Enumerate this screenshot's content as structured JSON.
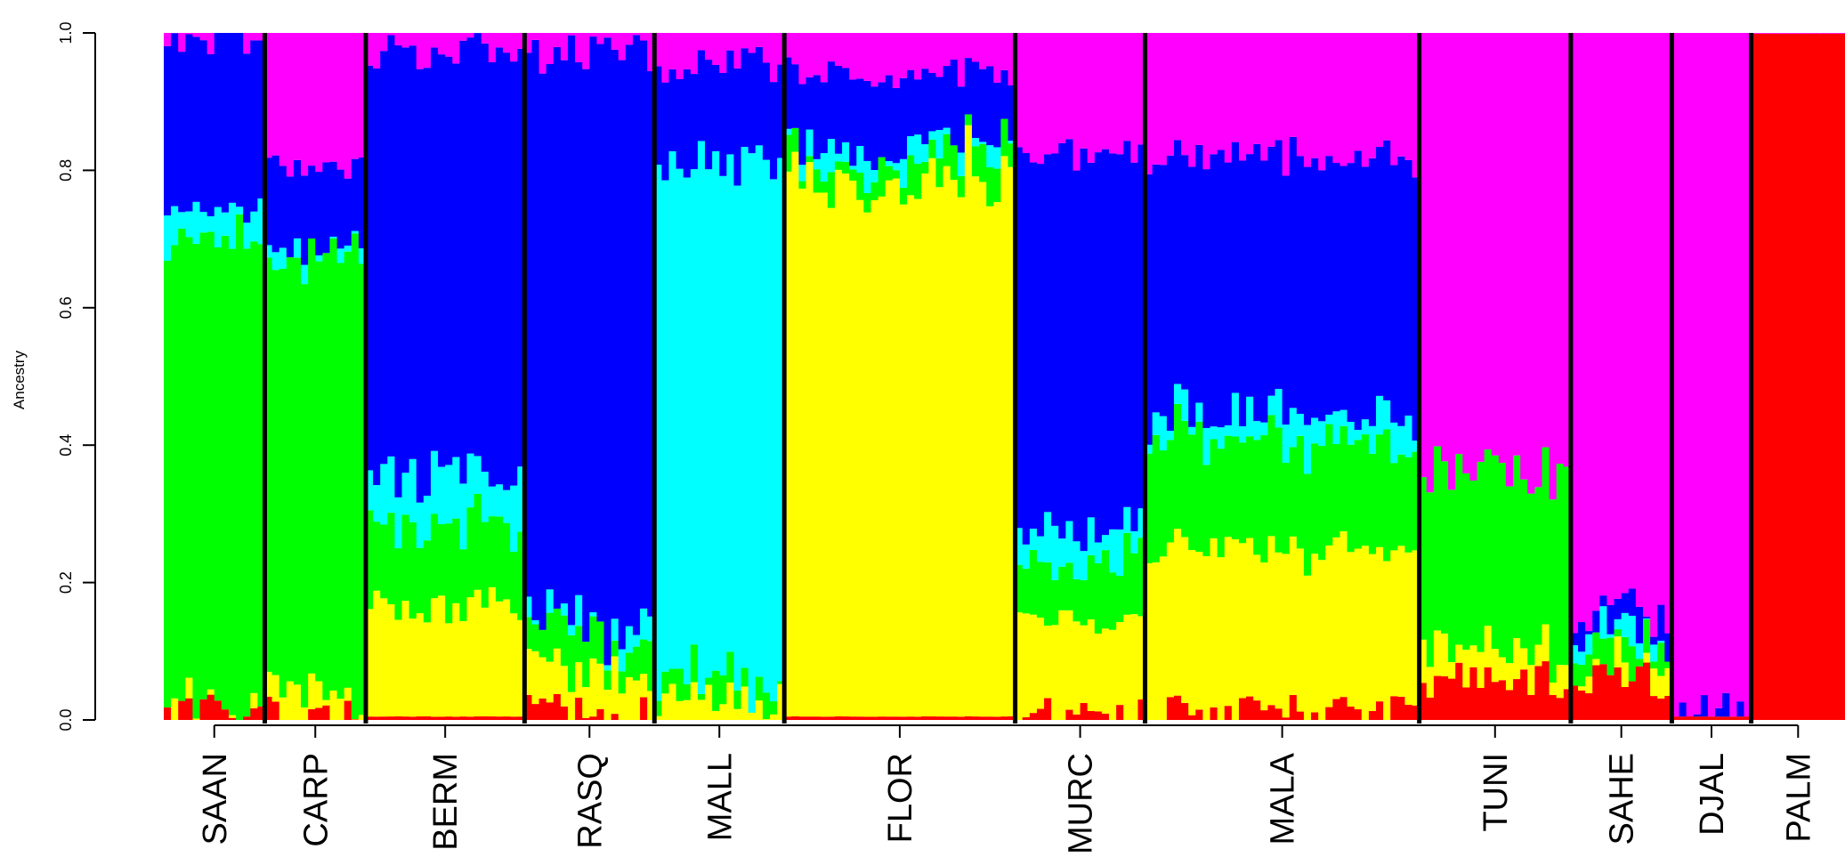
{
  "chart_data": {
    "type": "stacked-bar",
    "ylabel": "Ancestry",
    "ylim": [
      0,
      1
    ],
    "yticks": [
      "0.0",
      "0.2",
      "0.4",
      "0.6",
      "0.8",
      "1.0"
    ],
    "series": [
      {
        "name": "red",
        "color": "#ff0000"
      },
      {
        "name": "yellow",
        "color": "#ffff00"
      },
      {
        "name": "green",
        "color": "#00ff00"
      },
      {
        "name": "cyan",
        "color": "#00ffff"
      },
      {
        "name": "blue",
        "color": "#0000ff"
      },
      {
        "name": "magenta",
        "color": "#ff00ff"
      }
    ],
    "groups": [
      {
        "label": "SAAN",
        "n": 14,
        "profile": [
          0.01,
          0.01,
          0.68,
          0.04,
          0.25,
          0.01
        ]
      },
      {
        "label": "CARP",
        "n": 14,
        "profile": [
          0.01,
          0.03,
          0.64,
          0.01,
          0.12,
          0.19
        ]
      },
      {
        "label": "BERM",
        "n": 22,
        "profile": [
          0.005,
          0.16,
          0.12,
          0.07,
          0.62,
          0.025
        ]
      },
      {
        "label": "RASQ",
        "n": 18,
        "profile": [
          0.01,
          0.06,
          0.05,
          0.02,
          0.83,
          0.03
        ]
      },
      {
        "label": "MALL",
        "n": 18,
        "profile": [
          0.0,
          0.03,
          0.03,
          0.75,
          0.14,
          0.05
        ]
      },
      {
        "label": "FLOR",
        "n": 32,
        "profile": [
          0.005,
          0.79,
          0.03,
          0.02,
          0.1,
          0.055
        ]
      },
      {
        "label": "MURC",
        "n": 18,
        "profile": [
          0.01,
          0.13,
          0.09,
          0.05,
          0.54,
          0.18
        ]
      },
      {
        "label": "MALA",
        "n": 38,
        "profile": [
          0.01,
          0.23,
          0.16,
          0.04,
          0.38,
          0.18
        ]
      },
      {
        "label": "TUNI",
        "n": 21,
        "profile": [
          0.06,
          0.04,
          0.26,
          0.0,
          0.0,
          0.64
        ]
      },
      {
        "label": "SAHE",
        "n": 14,
        "profile": [
          0.06,
          0.02,
          0.03,
          0.02,
          0.03,
          0.84
        ]
      },
      {
        "label": "DJAL",
        "n": 11,
        "profile": [
          0.005,
          0.0,
          0.0,
          0.0,
          0.01,
          0.985
        ]
      },
      {
        "label": "PALM",
        "n": 13,
        "profile": [
          0.999,
          0.0,
          0.0,
          0.0,
          0.0,
          0.001
        ]
      }
    ]
  }
}
